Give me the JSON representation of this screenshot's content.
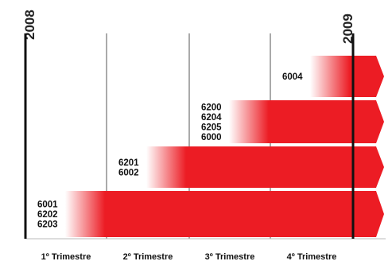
{
  "chart_data": {
    "type": "bar",
    "start_year": "2008",
    "end_year": "2009",
    "quarters": [
      "1º Trimestre",
      "2º Trimestre",
      "3º Trimestre",
      "4º Trimestre"
    ],
    "series": [
      {
        "codes": [
          "6004"
        ],
        "start_quarter": 4,
        "extends_beyond": true
      },
      {
        "codes": [
          "6200",
          "6204",
          "6205",
          "6000"
        ],
        "start_quarter": 3,
        "extends_beyond": true
      },
      {
        "codes": [
          "6201",
          "6002"
        ],
        "start_quarter": 2,
        "extends_beyond": true
      },
      {
        "codes": [
          "6001",
          "6202",
          "6203"
        ],
        "start_quarter": 1,
        "extends_beyond": true
      }
    ],
    "colors": {
      "bar": "#ec1c24",
      "fade": "#ffffff",
      "grid": "#555555",
      "axis": "#111111"
    }
  }
}
